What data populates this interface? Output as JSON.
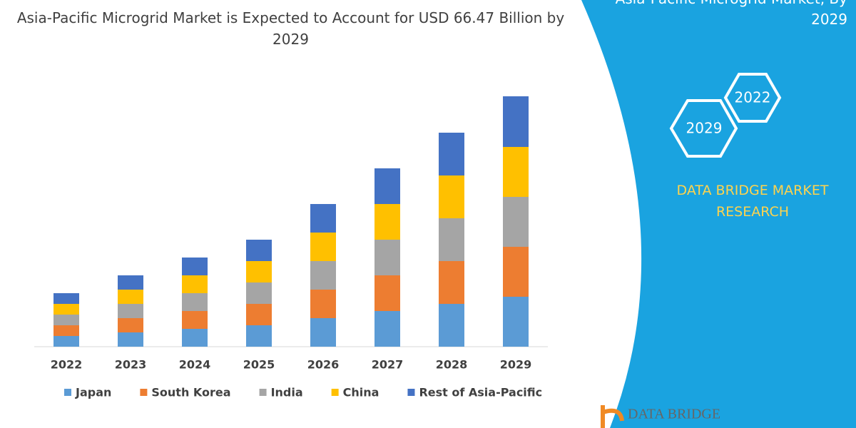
{
  "chart_data": {
    "type": "stacked-bar",
    "title": "Asia-Pacific Microgrid Market is Expected to Account for USD 66.47 Billion by 2029",
    "categories": [
      "2022",
      "2023",
      "2024",
      "2025",
      "2026",
      "2027",
      "2028",
      "2029"
    ],
    "series": [
      {
        "name": "Japan",
        "color": "#5b9bd5",
        "values": [
          15,
          20,
          25,
          30,
          40,
          50,
          60,
          70
        ]
      },
      {
        "name": "South Korea",
        "color": "#ed7d31",
        "values": [
          15,
          20,
          25,
          30,
          40,
          50,
          60,
          70
        ]
      },
      {
        "name": "India",
        "color": "#a5a5a5",
        "values": [
          15,
          20,
          25,
          30,
          40,
          50,
          60,
          70
        ]
      },
      {
        "name": "China",
        "color": "#ffc000",
        "values": [
          15,
          20,
          25,
          30,
          40,
          50,
          60,
          70
        ]
      },
      {
        "name": "Rest of Asia-Pacific",
        "color": "#4472c4",
        "values": [
          15,
          20,
          25,
          30,
          40,
          50,
          60,
          71
        ]
      }
    ],
    "ylim": [
      0,
      360
    ],
    "legend": "bottom"
  },
  "panel": {
    "heading": "Asia-Pacific Microgrid Market, By 2029",
    "hexagons": [
      "2022",
      "2029"
    ],
    "brand": "DATA BRIDGE MARKET RESEARCH",
    "logo": "DATA BRIDGE"
  }
}
